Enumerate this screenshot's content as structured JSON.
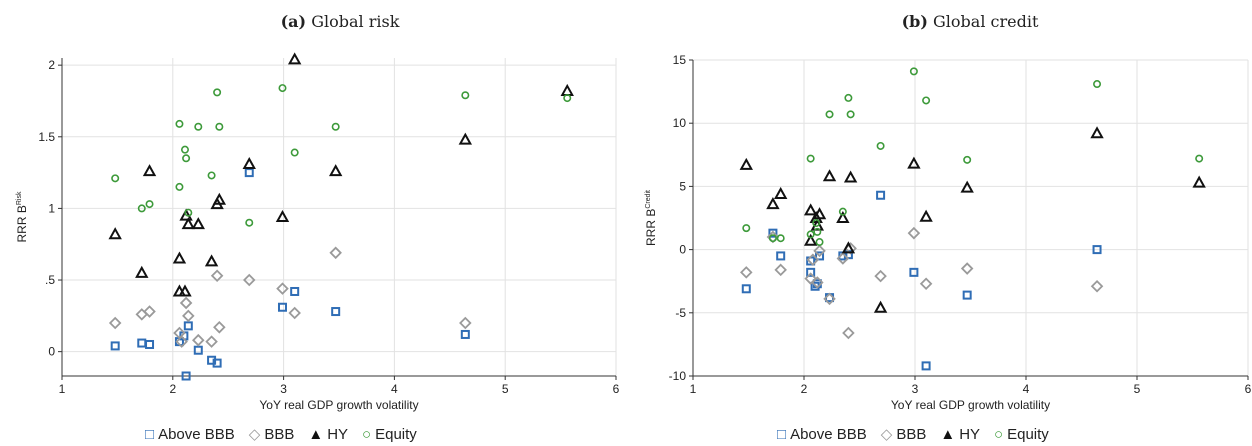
{
  "panels": [
    {
      "label": "(a)",
      "title": "Global risk",
      "chart_data": {
        "type": "scatter",
        "title": "(a) Global risk",
        "xlabel": "YoY real GDP growth volatility",
        "ylabel": "RRR B",
        "ylabel_sup": "Risk",
        "xlim": [
          1,
          6
        ],
        "ylim": [
          -0.17,
          2.05
        ],
        "xticks": [
          1,
          2,
          3,
          4,
          5,
          6
        ],
        "yticks": [
          0,
          0.5,
          1,
          1.5,
          2
        ],
        "ytick_labels": [
          "0",
          ".5",
          "1",
          "1.5",
          "2"
        ],
        "grid": true,
        "legend_position": "bottom",
        "series": [
          {
            "name": "Above BBB",
            "marker": "square",
            "color": "#2f6db5",
            "x": [
              1.48,
              1.72,
              1.79,
              2.06,
              2.1,
              2.14,
              2.12,
              2.23,
              2.35,
              2.4,
              2.69,
              2.99,
              3.1,
              3.47,
              4.64
            ],
            "y": [
              0.04,
              0.06,
              0.05,
              0.07,
              0.11,
              0.18,
              -0.17,
              0.01,
              -0.06,
              -0.08,
              1.25,
              0.31,
              0.42,
              0.28,
              0.12
            ]
          },
          {
            "name": "BBB",
            "marker": "diamond",
            "color": "#9a9a9a",
            "x": [
              1.48,
              1.72,
              1.79,
              2.06,
              2.08,
              2.12,
              2.14,
              2.23,
              2.35,
              2.4,
              2.42,
              2.69,
              2.99,
              3.1,
              3.47,
              4.64
            ],
            "y": [
              0.2,
              0.26,
              0.28,
              0.13,
              0.07,
              0.34,
              0.25,
              0.08,
              0.07,
              0.53,
              0.17,
              0.5,
              0.44,
              0.27,
              0.69,
              0.2
            ]
          },
          {
            "name": "HY",
            "marker": "triangle",
            "color": "#111111",
            "x": [
              1.48,
              1.72,
              1.79,
              2.06,
              2.06,
              2.11,
              2.12,
              2.14,
              2.23,
              2.35,
              2.4,
              2.42,
              2.69,
              2.99,
              3.1,
              3.47,
              4.64,
              5.56
            ],
            "y": [
              0.82,
              0.55,
              1.26,
              0.65,
              0.42,
              0.42,
              0.95,
              0.89,
              0.89,
              0.63,
              1.03,
              1.06,
              1.31,
              0.94,
              2.04,
              1.26,
              1.48,
              1.82
            ]
          },
          {
            "name": "Equity",
            "marker": "circle",
            "color": "#3d9a3a",
            "x": [
              1.48,
              1.72,
              1.79,
              2.06,
              2.06,
              2.11,
              2.12,
              2.14,
              2.23,
              2.35,
              2.4,
              2.42,
              2.69,
              2.99,
              3.1,
              3.47,
              4.64,
              5.56
            ],
            "y": [
              1.21,
              1.0,
              1.03,
              1.59,
              1.15,
              1.41,
              1.35,
              0.97,
              1.57,
              1.23,
              1.81,
              1.57,
              0.9,
              1.84,
              1.39,
              1.57,
              1.79,
              1.77
            ]
          }
        ]
      }
    },
    {
      "label": "(b)",
      "title": "Global credit",
      "chart_data": {
        "type": "scatter",
        "title": "(b) Global credit",
        "xlabel": "YoY real GDP growth volatility",
        "ylabel": "RRR B",
        "ylabel_sup": "Credit",
        "xlim": [
          1,
          6
        ],
        "ylim": [
          -10,
          15
        ],
        "xticks": [
          1,
          2,
          3,
          4,
          5,
          6
        ],
        "yticks": [
          -10,
          -5,
          0,
          5,
          10,
          15
        ],
        "ytick_labels": [
          "-10",
          "-5",
          "0",
          "5",
          "10",
          "15"
        ],
        "grid": true,
        "legend_position": "bottom",
        "series": [
          {
            "name": "Above BBB",
            "marker": "square",
            "color": "#2f6db5",
            "x": [
              1.48,
              1.72,
              1.79,
              2.06,
              2.06,
              2.1,
              2.12,
              2.14,
              2.23,
              2.35,
              2.4,
              2.69,
              2.99,
              3.1,
              3.47,
              4.64
            ],
            "y": [
              -3.1,
              1.3,
              -0.5,
              -1.8,
              -0.9,
              -2.9,
              -2.7,
              -0.5,
              -3.8,
              -0.5,
              -0.4,
              4.3,
              -1.8,
              -9.2,
              -3.6,
              0.0
            ]
          },
          {
            "name": "BBB",
            "marker": "diamond",
            "color": "#9a9a9a",
            "x": [
              1.48,
              1.72,
              1.79,
              2.06,
              2.08,
              2.12,
              2.14,
              2.23,
              2.35,
              2.4,
              2.42,
              2.69,
              2.99,
              3.1,
              3.47,
              4.64
            ],
            "y": [
              -1.8,
              1.0,
              -1.6,
              -2.3,
              -0.8,
              -2.6,
              -0.1,
              -3.9,
              -0.7,
              -6.6,
              0.1,
              -2.1,
              1.3,
              -2.7,
              -1.5,
              -2.9
            ]
          },
          {
            "name": "HY",
            "marker": "triangle",
            "color": "#111111",
            "x": [
              1.48,
              1.72,
              1.79,
              2.06,
              2.06,
              2.11,
              2.12,
              2.14,
              2.23,
              2.35,
              2.4,
              2.42,
              2.69,
              2.99,
              3.1,
              3.47,
              4.64,
              5.56
            ],
            "y": [
              6.7,
              3.6,
              4.4,
              3.1,
              0.7,
              2.5,
              1.9,
              2.8,
              5.8,
              2.5,
              0.1,
              5.7,
              -4.6,
              6.8,
              2.6,
              4.9,
              9.2,
              5.3
            ]
          },
          {
            "name": "Equity",
            "marker": "circle",
            "color": "#3d9a3a",
            "x": [
              1.48,
              1.72,
              1.79,
              2.06,
              2.06,
              2.11,
              2.12,
              2.14,
              2.23,
              2.35,
              2.4,
              2.42,
              2.69,
              2.99,
              3.1,
              3.47,
              4.64,
              5.56
            ],
            "y": [
              1.7,
              0.9,
              0.9,
              7.2,
              1.2,
              2.1,
              1.4,
              0.6,
              10.7,
              3.0,
              12.0,
              10.7,
              8.2,
              14.1,
              11.8,
              7.1,
              13.1,
              7.2
            ]
          }
        ]
      }
    }
  ]
}
